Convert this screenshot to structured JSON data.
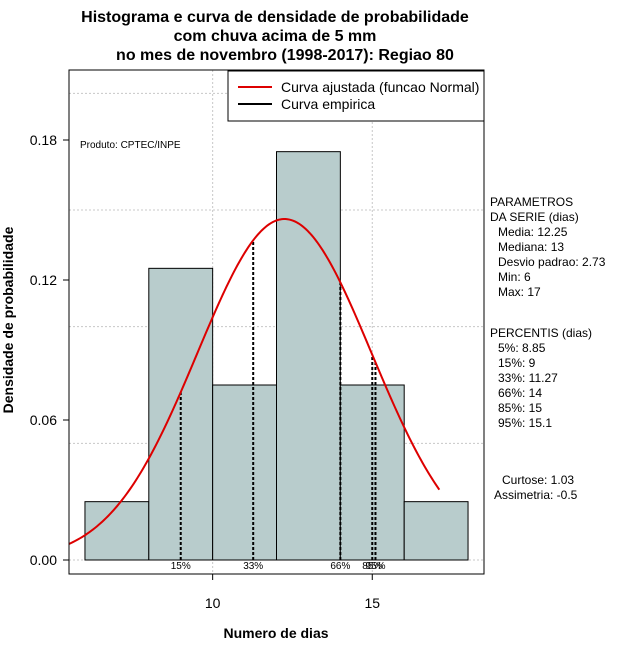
{
  "chart_data": {
    "type": "bar",
    "title_lines": [
      "Histograma e curva de densidade de probabilidade",
      "com chuva acima de 5 mm",
      "no mes de novembro (1998-2017): Regiao 80"
    ],
    "xlabel": "Numero de dias",
    "ylabel": "Densidade de probabilidade",
    "xlim": [
      5.5,
      18.5
    ],
    "ylim": [
      -0.006,
      0.21
    ],
    "x_ticks": [
      10,
      15
    ],
    "y_ticks": [
      0.0,
      0.06,
      0.12,
      0.18
    ],
    "y_tick_labels": [
      "0.00",
      "0.06",
      "0.12",
      "0.18"
    ],
    "x_grid": [
      10,
      15
    ],
    "y_grid": [
      0.0,
      0.05,
      0.1,
      0.15,
      0.2
    ],
    "bins": [
      {
        "start": 6,
        "end": 8,
        "density": 0.025
      },
      {
        "start": 8,
        "end": 10,
        "density": 0.125
      },
      {
        "start": 10,
        "end": 12,
        "density": 0.075
      },
      {
        "start": 12,
        "end": 14,
        "density": 0.175
      },
      {
        "start": 14,
        "end": 16,
        "density": 0.075
      },
      {
        "start": 16,
        "end": 18,
        "density": 0.025
      }
    ],
    "bar_color": "#b8cccc",
    "normal_curve": {
      "name": "Curva ajustada (funcao Normal)",
      "color": "#dd0000",
      "mean": 12.25,
      "sd": 2.73,
      "x_range": [
        5.5,
        17.1
      ]
    },
    "empirical_curve": {
      "name": "Curva empirica",
      "color": "#000000"
    },
    "legend": [
      "Curva ajustada (funcao Normal)",
      "Curva empirica"
    ],
    "legend_position": "top-right",
    "percentile_lines": [
      {
        "label": "15%",
        "x": 9.0
      },
      {
        "label": "33%",
        "x": 11.27
      },
      {
        "label": "66%",
        "x": 14.0
      },
      {
        "label": "85%",
        "x": 15.0
      },
      {
        "label": "95%",
        "x": 15.1
      }
    ],
    "annotation_product": "Produto: CPTEC/INPE",
    "parametros": {
      "header": [
        "PARAMETROS",
        "DA SERIE (dias)"
      ],
      "lines": [
        "Media: 12.25",
        "Mediana: 13",
        "Desvio padrao: 2.73",
        "Min: 6",
        "Max: 17"
      ]
    },
    "percentis": {
      "header": "PERCENTIS (dias)",
      "lines": [
        "5%: 8.85",
        "15%: 9",
        "33%: 11.27",
        "66%: 14",
        "85%: 15",
        "95%: 15.1"
      ]
    },
    "stats": [
      "Curtose: 1.03",
      "Assimetria: -0.5"
    ]
  }
}
